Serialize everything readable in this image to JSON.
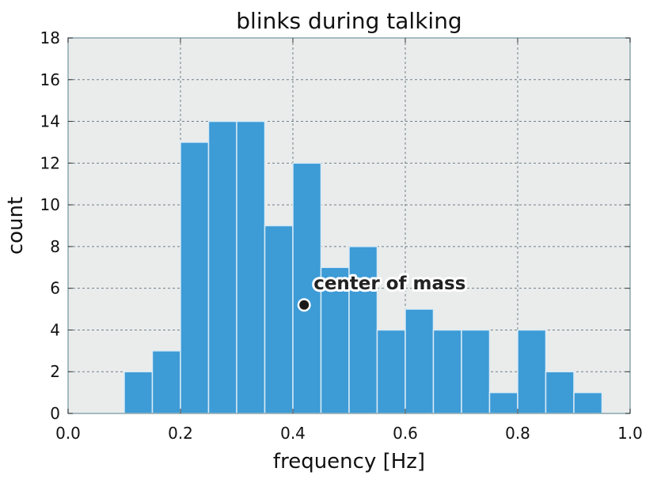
{
  "chart_data": {
    "type": "bar",
    "title": "blinks during talking",
    "xlabel": "frequency [Hz]",
    "ylabel": "count",
    "xlim": [
      0.0,
      1.0
    ],
    "ylim": [
      0,
      18
    ],
    "grid": true,
    "xticks": [
      "0.0",
      "0.2",
      "0.4",
      "0.6",
      "0.8",
      "1.0"
    ],
    "yticks": [
      "0",
      "2",
      "4",
      "6",
      "8",
      "10",
      "12",
      "14",
      "16",
      "18"
    ],
    "bin_width": 0.05,
    "bin_starts": [
      0.1,
      0.15,
      0.2,
      0.25,
      0.3,
      0.35,
      0.4,
      0.45,
      0.5,
      0.55,
      0.6,
      0.65,
      0.7,
      0.75,
      0.8,
      0.85,
      0.9
    ],
    "values": [
      2,
      3,
      13,
      14,
      14,
      9,
      12,
      7,
      8,
      4,
      5,
      4,
      4,
      1,
      4,
      2,
      1
    ],
    "annotation": {
      "text": "center of mass",
      "x": 0.42,
      "y": 5.2
    },
    "colors": {
      "bar": "#3d9bd6",
      "bar_edge": "#d8eaf5",
      "plot_bg": "#eaecec",
      "frame": "#8aa6ad",
      "grid": "#6f7f86",
      "marker": "#1a1a1a"
    }
  }
}
